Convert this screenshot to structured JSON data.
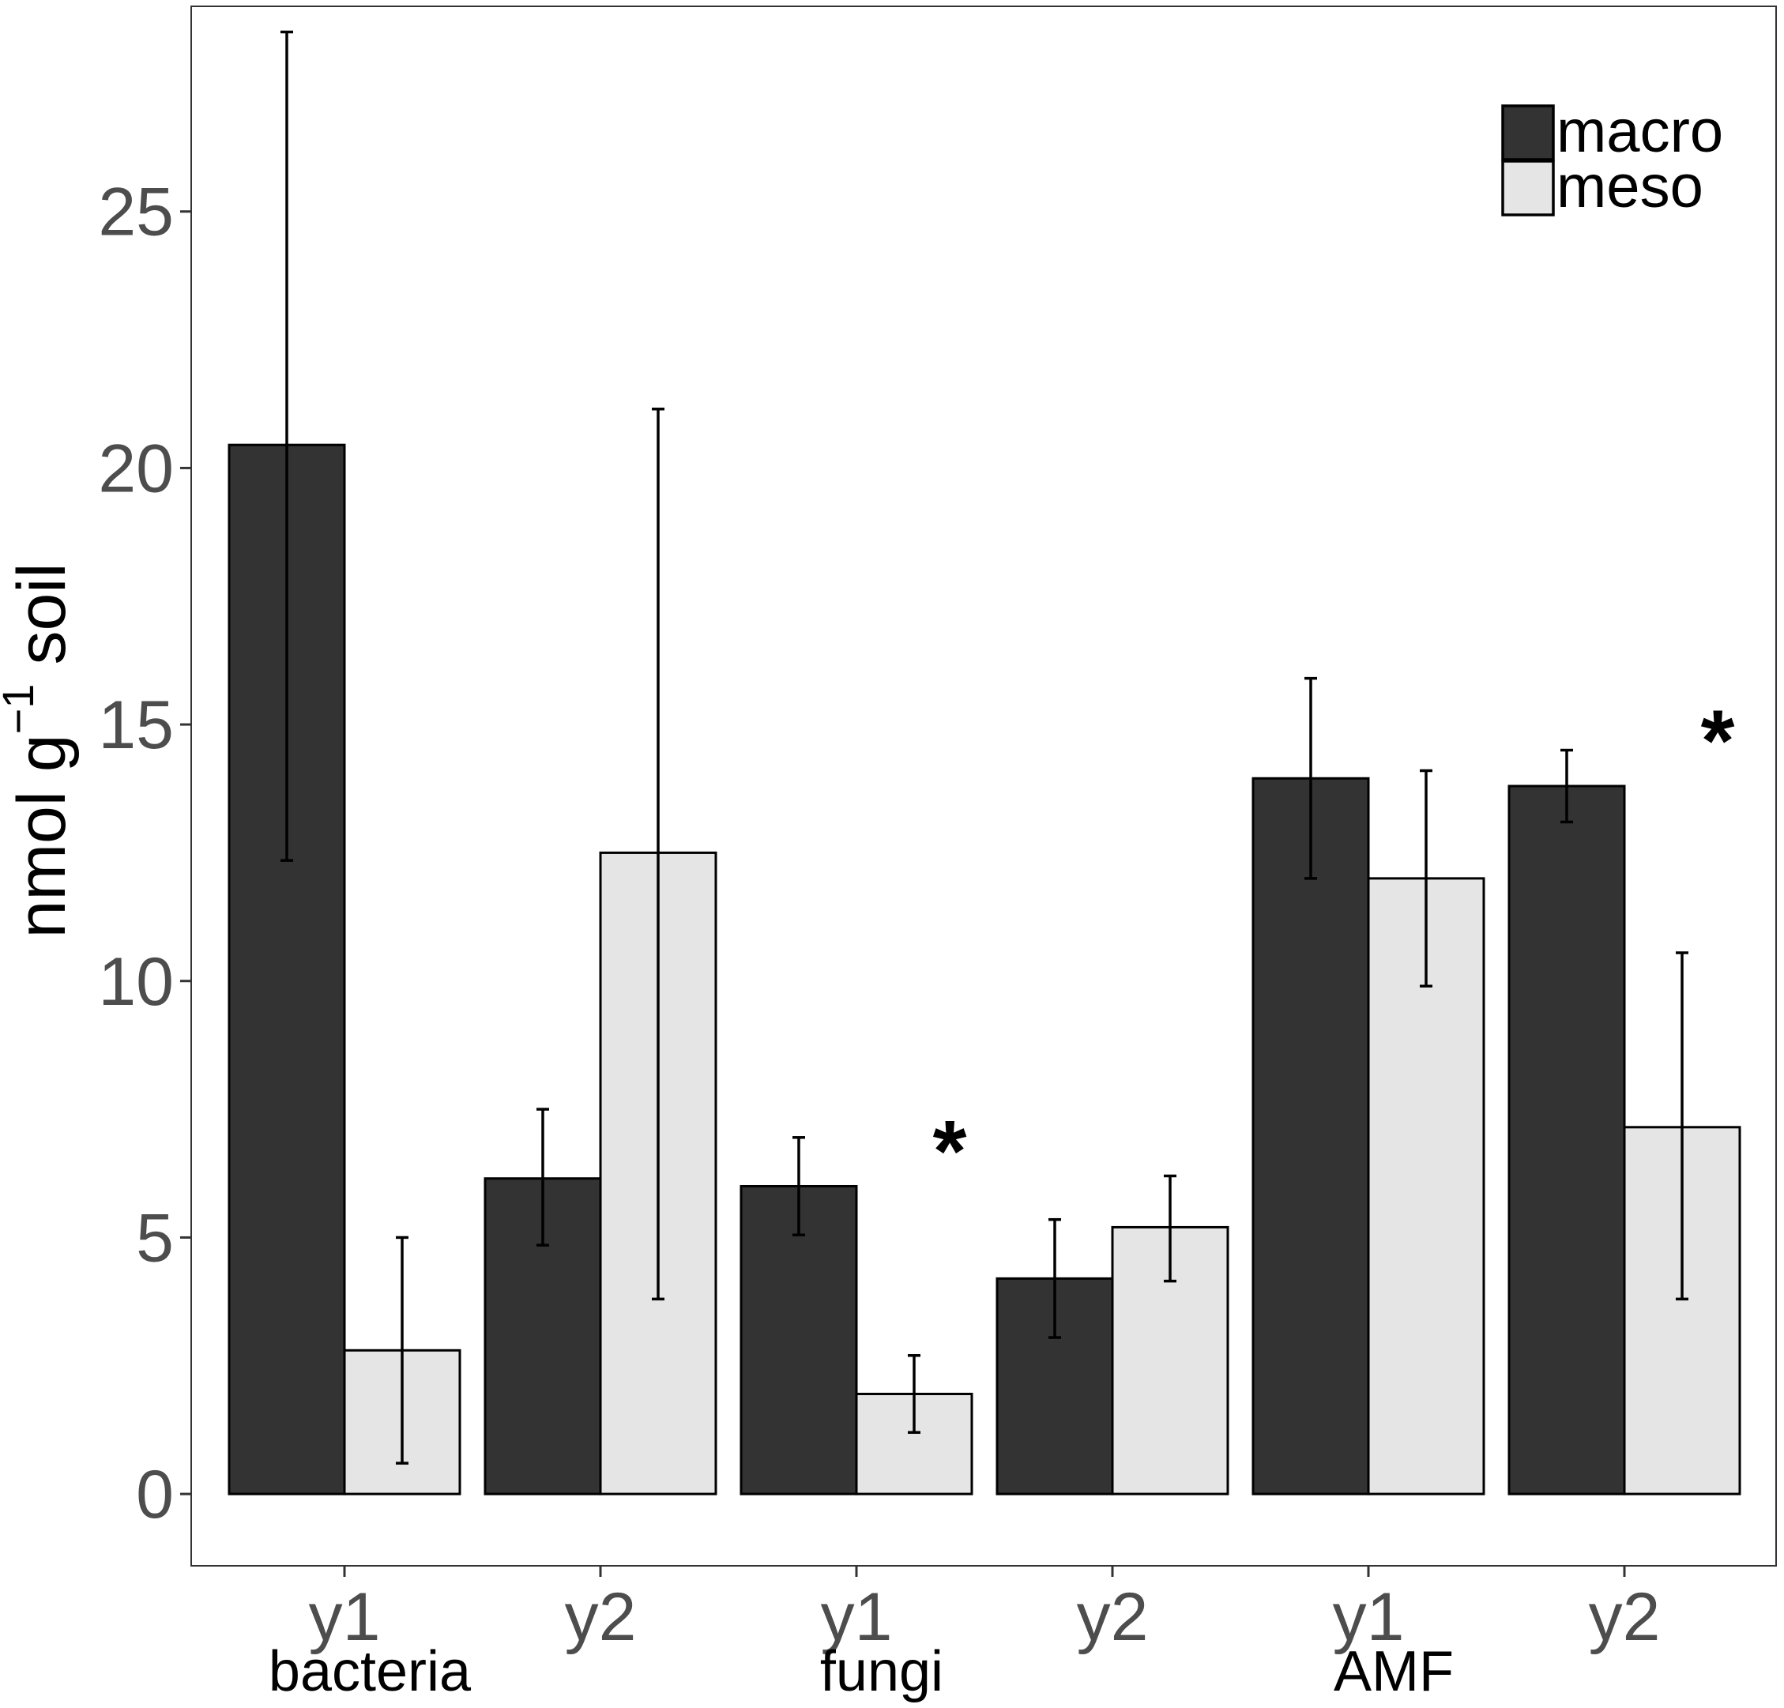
{
  "chart_data": {
    "type": "bar",
    "ylabel_parts": {
      "base": "nmol  g",
      "superscript": "−1",
      "unit": "soil"
    },
    "ylim": [
      -1.4,
      29
    ],
    "y_ticks": [
      0,
      5,
      10,
      15,
      20,
      25
    ],
    "y_tick_labels": [
      "0",
      "5",
      "10",
      "15",
      "20",
      "25"
    ],
    "categories": [
      "y1",
      "y2",
      "y1",
      "y2",
      "y1",
      "y2"
    ],
    "groups": [
      {
        "label": "bacteria",
        "span": [
          0,
          1
        ]
      },
      {
        "label": "fungi",
        "span": [
          2,
          3
        ]
      },
      {
        "label": "AMF",
        "span": [
          4,
          5
        ]
      }
    ],
    "series": [
      {
        "name": "macro",
        "color": "#333333",
        "values": [
          20.45,
          6.15,
          6.0,
          4.2,
          13.95,
          13.8
        ],
        "err_low": [
          12.35,
          4.85,
          5.05,
          3.05,
          12.0,
          13.1
        ],
        "err_high": [
          28.5,
          7.5,
          6.95,
          5.35,
          15.9,
          14.5
        ]
      },
      {
        "name": "meso",
        "color": "#e5e5e5",
        "values": [
          2.8,
          12.5,
          1.95,
          5.2,
          12.0,
          7.15
        ],
        "err_low": [
          0.6,
          3.8,
          1.2,
          4.15,
          9.9,
          3.8
        ],
        "err_high": [
          5.0,
          21.15,
          2.7,
          6.2,
          14.1,
          10.55
        ]
      }
    ],
    "annotations": [
      {
        "text": "*",
        "category_index": 2,
        "y": 6.9
      },
      {
        "text": "*",
        "category_index": 5,
        "y": 14.9
      }
    ],
    "legend": {
      "position": "top-right",
      "entries": [
        "macro",
        "meso"
      ]
    }
  }
}
